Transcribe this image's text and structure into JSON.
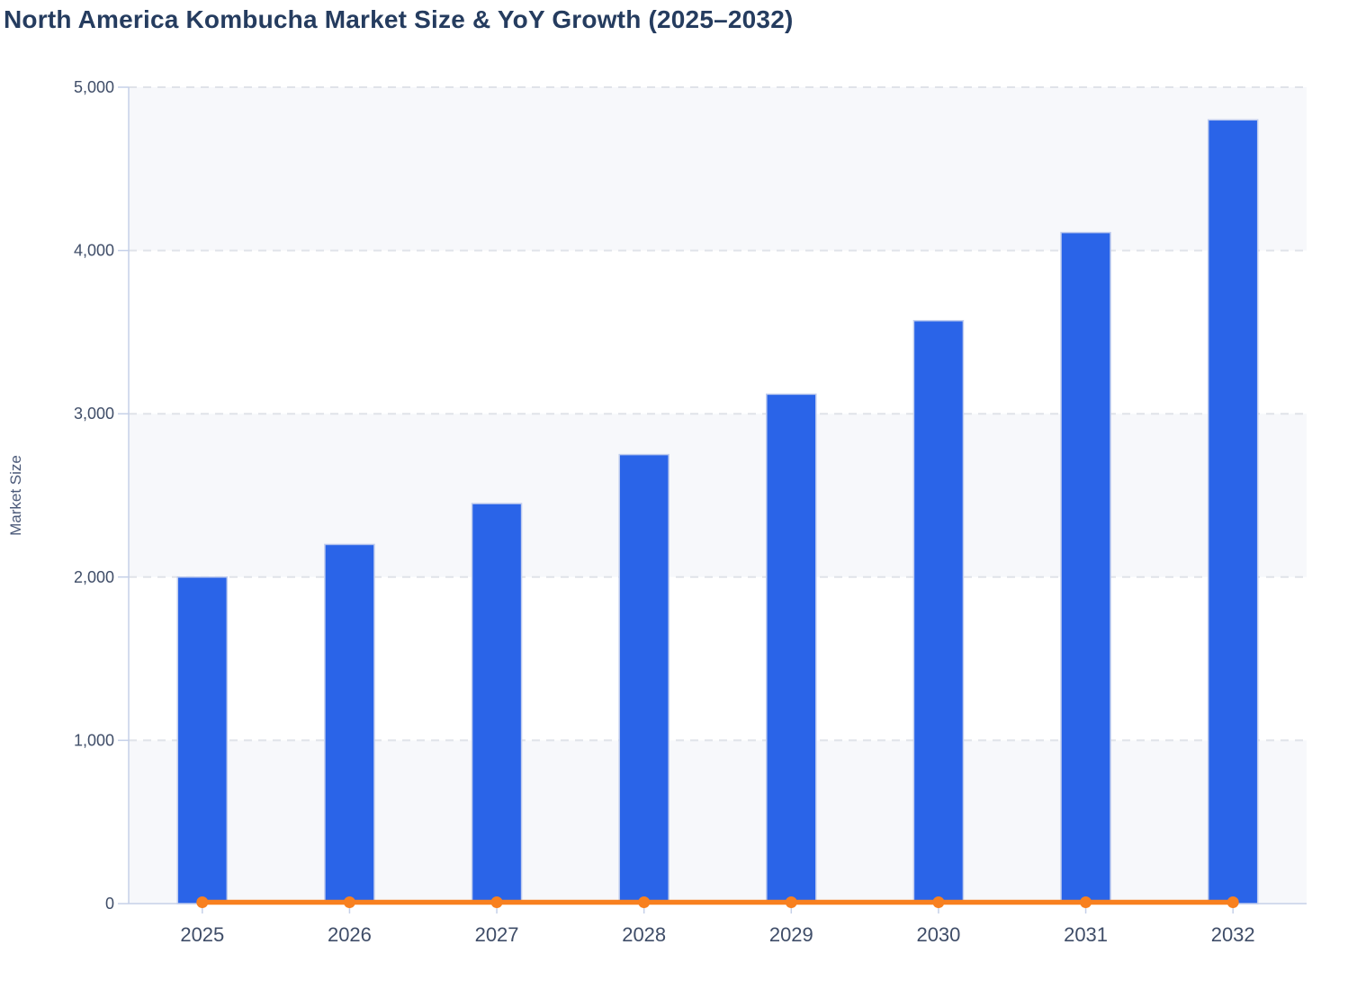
{
  "title": "North America Kombucha Market Size & YoY Growth (2025–2032)",
  "colors": {
    "bar": "#2a64e8",
    "bar_border": "#bfccee",
    "line": "#f8801f",
    "title_text": "#253c5f",
    "tick_text": "#3f4d68",
    "axis_title_text": "#4a5878",
    "axis_line": "#c5d0e8",
    "grid_line": "#e0e3e9",
    "band_fill": "#f7f8fb"
  },
  "chart_data": {
    "type": "bar",
    "combo": "bar+line",
    "title": "North America Kombucha Market Size & YoY Growth (2025–2032)",
    "categories": [
      "2025",
      "2026",
      "2027",
      "2028",
      "2029",
      "2030",
      "2031",
      "2032"
    ],
    "series": [
      {
        "name": "Market Size",
        "type": "bar",
        "values": [
          2000,
          2200,
          2450,
          2750,
          3120,
          3570,
          4110,
          4800
        ]
      },
      {
        "name": "YoY Growth",
        "type": "line",
        "values": [
          0,
          0,
          0,
          0,
          0,
          0,
          0,
          0
        ],
        "note": "orange line with round markers renders flat at ≈0 on the shared Market Size axis; exact growth-% values are not displayed in the image"
      }
    ],
    "xlabel": "",
    "ylabel": "Market Size",
    "ylim": [
      0,
      5000
    ],
    "yticks": [
      0,
      1000,
      2000,
      3000,
      4000,
      5000
    ],
    "ytick_labels": [
      "0",
      "1,000",
      "2,000",
      "3,000",
      "4,000",
      "5,000"
    ],
    "grid": "dashed horizontal gridlines",
    "alternating_bands": "light grey-blue horizontal bands between alternate gridlines (0–1000, 2000–3000, 4000–5000)",
    "legend": "none",
    "data_labels": "none"
  }
}
